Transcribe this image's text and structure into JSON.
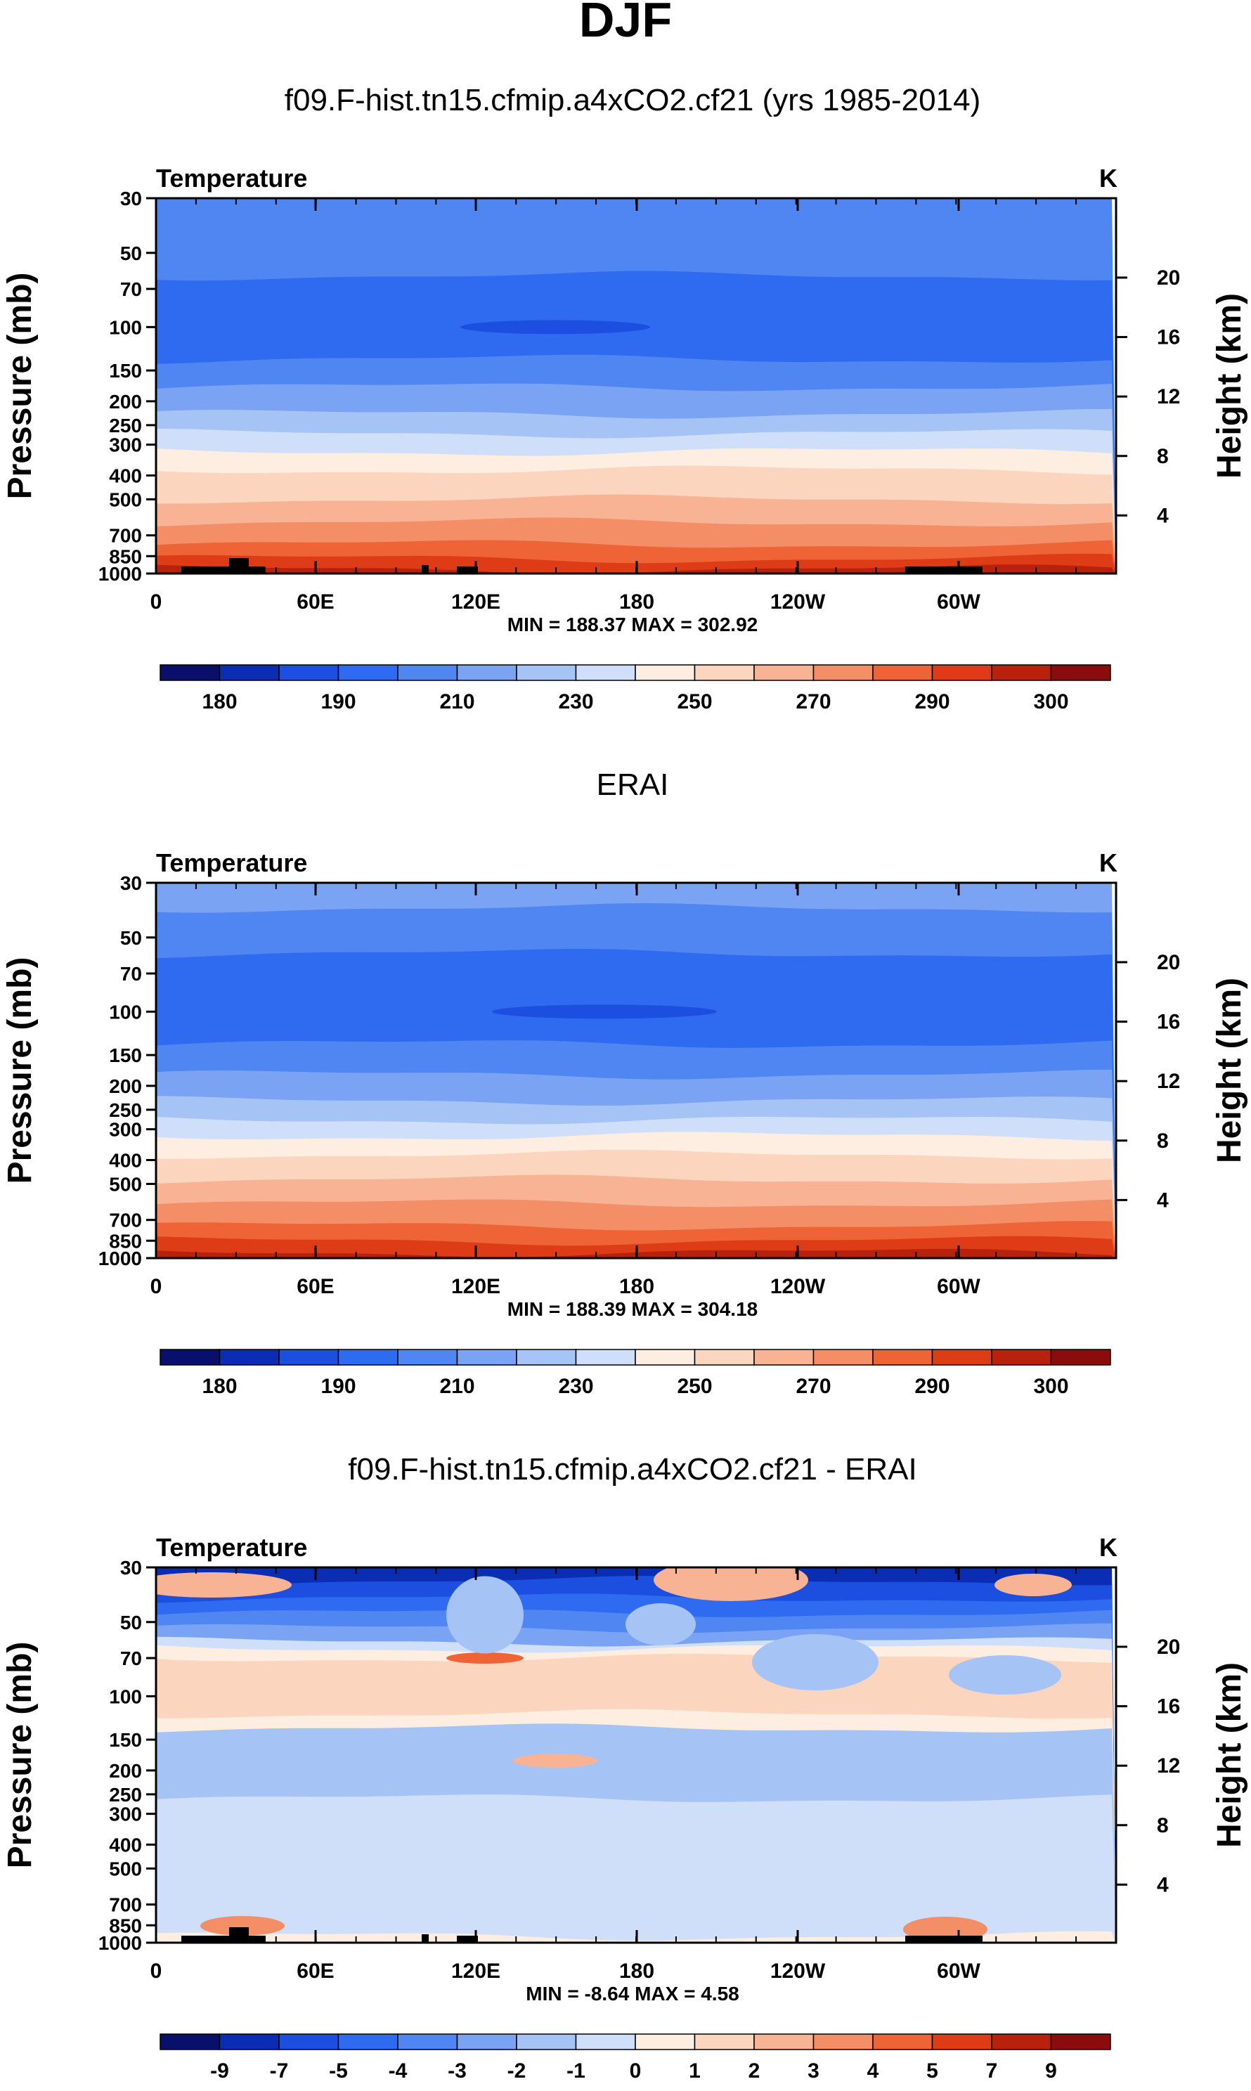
{
  "figure_title": "DJF",
  "colors": {
    "full_palette": [
      "#08106b",
      "#0b2db4",
      "#1c4fe0",
      "#2f6bf0",
      "#4f86f2",
      "#7aa3f4",
      "#a6c3f6",
      "#cfdef9",
      "#fdeee1",
      "#fbd5bd",
      "#f7b394",
      "#f38e66",
      "#ee6436",
      "#de3c17",
      "#b8210c",
      "#8a0c0c"
    ],
    "diff_palette": [
      "#08106b",
      "#0b2db4",
      "#1c4fe0",
      "#2f6bf0",
      "#4f86f2",
      "#7aa3f4",
      "#a6c3f6",
      "#cfdef9",
      "#fdeee1",
      "#fbd5bd",
      "#f7b394",
      "#f38e66",
      "#ee6436",
      "#de3c17",
      "#b8210c",
      "#8a0c0c"
    ],
    "terrain": "#000000"
  },
  "chart_data": [
    {
      "type": "contour",
      "title": "f09.F-hist.tn15.cfmip.a4xCO2.cf21 (yrs 1985-2014)",
      "variable_label": "Temperature",
      "units_label": "K",
      "xlabel": "",
      "ylabel": "Pressure (mb)",
      "right_axis_label": "Height (km)",
      "x_ticks": [
        "0",
        "60E",
        "120E",
        "180",
        "120W",
        "60W"
      ],
      "y_ticks": [
        "30",
        "50",
        "70",
        "100",
        "150",
        "200",
        "250",
        "300",
        "400",
        "500",
        "700",
        "850",
        "1000"
      ],
      "right_ticks": [
        "20",
        "16",
        "12",
        "8",
        "4"
      ],
      "stats": "MIN = 188.37  MAX = 302.92",
      "min": 188.37,
      "max": 302.92,
      "colorbar_labels": [
        "180",
        "190",
        "210",
        "230",
        "250",
        "270",
        "290",
        "300"
      ],
      "bands": [
        {
          "p": 30,
          "level": 4
        },
        {
          "p": 62,
          "level": 3
        },
        {
          "p": 135,
          "level": 4
        },
        {
          "p": 175,
          "level": 5
        },
        {
          "p": 225,
          "level": 6
        },
        {
          "p": 270,
          "level": 7
        },
        {
          "p": 320,
          "level": 8
        },
        {
          "p": 380,
          "level": 9
        },
        {
          "p": 500,
          "level": 10
        },
        {
          "p": 620,
          "level": 11
        },
        {
          "p": 760,
          "level": 12
        },
        {
          "p": 870,
          "level": 13
        },
        {
          "p": 960,
          "level": 14
        }
      ]
    },
    {
      "type": "contour",
      "title": "ERAI",
      "variable_label": "Temperature",
      "units_label": "K",
      "xlabel": "",
      "ylabel": "Pressure (mb)",
      "right_axis_label": "Height (km)",
      "x_ticks": [
        "0",
        "60E",
        "120E",
        "180",
        "120W",
        "60W"
      ],
      "y_ticks": [
        "30",
        "50",
        "70",
        "100",
        "150",
        "200",
        "250",
        "300",
        "400",
        "500",
        "700",
        "850",
        "1000"
      ],
      "right_ticks": [
        "20",
        "16",
        "12",
        "8",
        "4"
      ],
      "stats": "MIN = 188.39  MAX = 304.18",
      "min": 188.39,
      "max": 304.18,
      "colorbar_labels": [
        "180",
        "190",
        "210",
        "230",
        "250",
        "270",
        "290",
        "300"
      ],
      "bands": [
        {
          "p": 30,
          "level": 5
        },
        {
          "p": 38,
          "level": 4
        },
        {
          "p": 58,
          "level": 3
        },
        {
          "p": 135,
          "level": 4
        },
        {
          "p": 180,
          "level": 5
        },
        {
          "p": 230,
          "level": 6
        },
        {
          "p": 275,
          "level": 7
        },
        {
          "p": 320,
          "level": 8
        },
        {
          "p": 380,
          "level": 9
        },
        {
          "p": 480,
          "level": 10
        },
        {
          "p": 600,
          "level": 11
        },
        {
          "p": 740,
          "level": 12
        },
        {
          "p": 850,
          "level": 13
        },
        {
          "p": 950,
          "level": 14
        }
      ]
    },
    {
      "type": "contour",
      "title": "f09.F-hist.tn15.cfmip.a4xCO2.cf21 - ERAI",
      "variable_label": "Temperature",
      "units_label": "K",
      "xlabel": "",
      "ylabel": "Pressure (mb)",
      "right_axis_label": "Height (km)",
      "x_ticks": [
        "0",
        "60E",
        "120E",
        "180",
        "120W",
        "60W"
      ],
      "y_ticks": [
        "30",
        "50",
        "70",
        "100",
        "150",
        "200",
        "250",
        "300",
        "400",
        "500",
        "700",
        "850",
        "1000"
      ],
      "right_ticks": [
        "20",
        "16",
        "12",
        "8",
        "4"
      ],
      "stats": "MIN = -8.64  MAX =   4.58",
      "min": -8.64,
      "max": 4.58,
      "colorbar_labels": [
        "-9",
        "-7",
        "-5",
        "-4",
        "-3",
        "-2",
        "-1",
        "0",
        "1",
        "2",
        "3",
        "4",
        "5",
        "7",
        "9"
      ],
      "bands": [
        {
          "p": 30,
          "level": 1
        },
        {
          "p": 34,
          "level": 2
        },
        {
          "p": 40,
          "level": 3
        },
        {
          "p": 46,
          "level": 4
        },
        {
          "p": 53,
          "level": 5
        },
        {
          "p": 60,
          "level": 7
        },
        {
          "p": 64,
          "level": 8
        },
        {
          "p": 70,
          "level": 9
        },
        {
          "p": 118,
          "level": 8
        },
        {
          "p": 135,
          "level": 6
        },
        {
          "p": 260,
          "level": 7
        },
        {
          "p": 940,
          "level": 8
        }
      ]
    }
  ]
}
